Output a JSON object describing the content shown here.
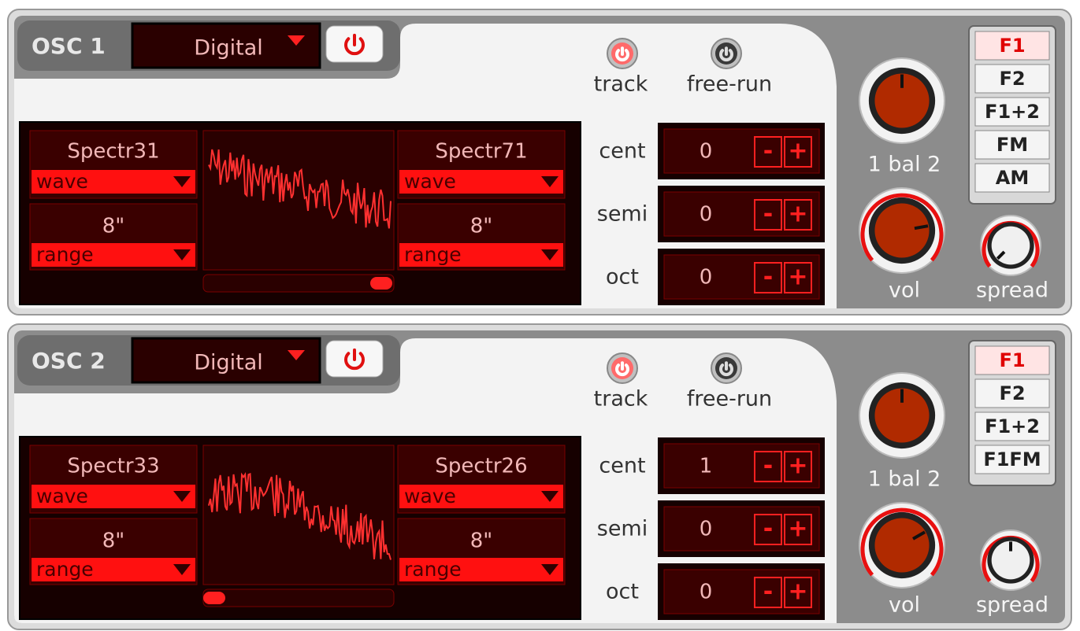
{
  "step_buttons": {
    "minus": "-",
    "plus": "+"
  },
  "oscillators": [
    {
      "title": "OSC 1",
      "type": "Digital",
      "track": "track",
      "free_run": "free-run",
      "left": {
        "wave_name": "Spectr31",
        "wave_label": "wave",
        "range_value": "8\"",
        "range_label": "range"
      },
      "right": {
        "wave_name": "Spectr71",
        "wave_label": "wave",
        "range_value": "8\"",
        "range_label": "range"
      },
      "tuning": [
        {
          "label": "cent",
          "value": 0
        },
        {
          "label": "semi",
          "value": 0
        },
        {
          "label": "oct",
          "value": 0
        }
      ],
      "balance_label": "1 bal 2",
      "vol_label": "vol",
      "spread_label": "spread",
      "modes": [
        "F1",
        "F2",
        "F1+2",
        "FM",
        "AM"
      ]
    },
    {
      "title": "OSC 2",
      "type": "Digital",
      "track": "track",
      "free_run": "free-run",
      "left": {
        "wave_name": "Spectr33",
        "wave_label": "wave",
        "range_value": "8\"",
        "range_label": "range"
      },
      "right": {
        "wave_name": "Spectr26",
        "wave_label": "wave",
        "range_value": "8\"",
        "range_label": "range"
      },
      "tuning": [
        {
          "label": "cent",
          "value": 1
        },
        {
          "label": "semi",
          "value": 0
        },
        {
          "label": "oct",
          "value": 0
        }
      ],
      "balance_label": "1 bal 2",
      "vol_label": "vol",
      "spread_label": "spread",
      "modes": [
        "F1",
        "F2",
        "F1+2",
        "F1FM"
      ]
    }
  ]
}
